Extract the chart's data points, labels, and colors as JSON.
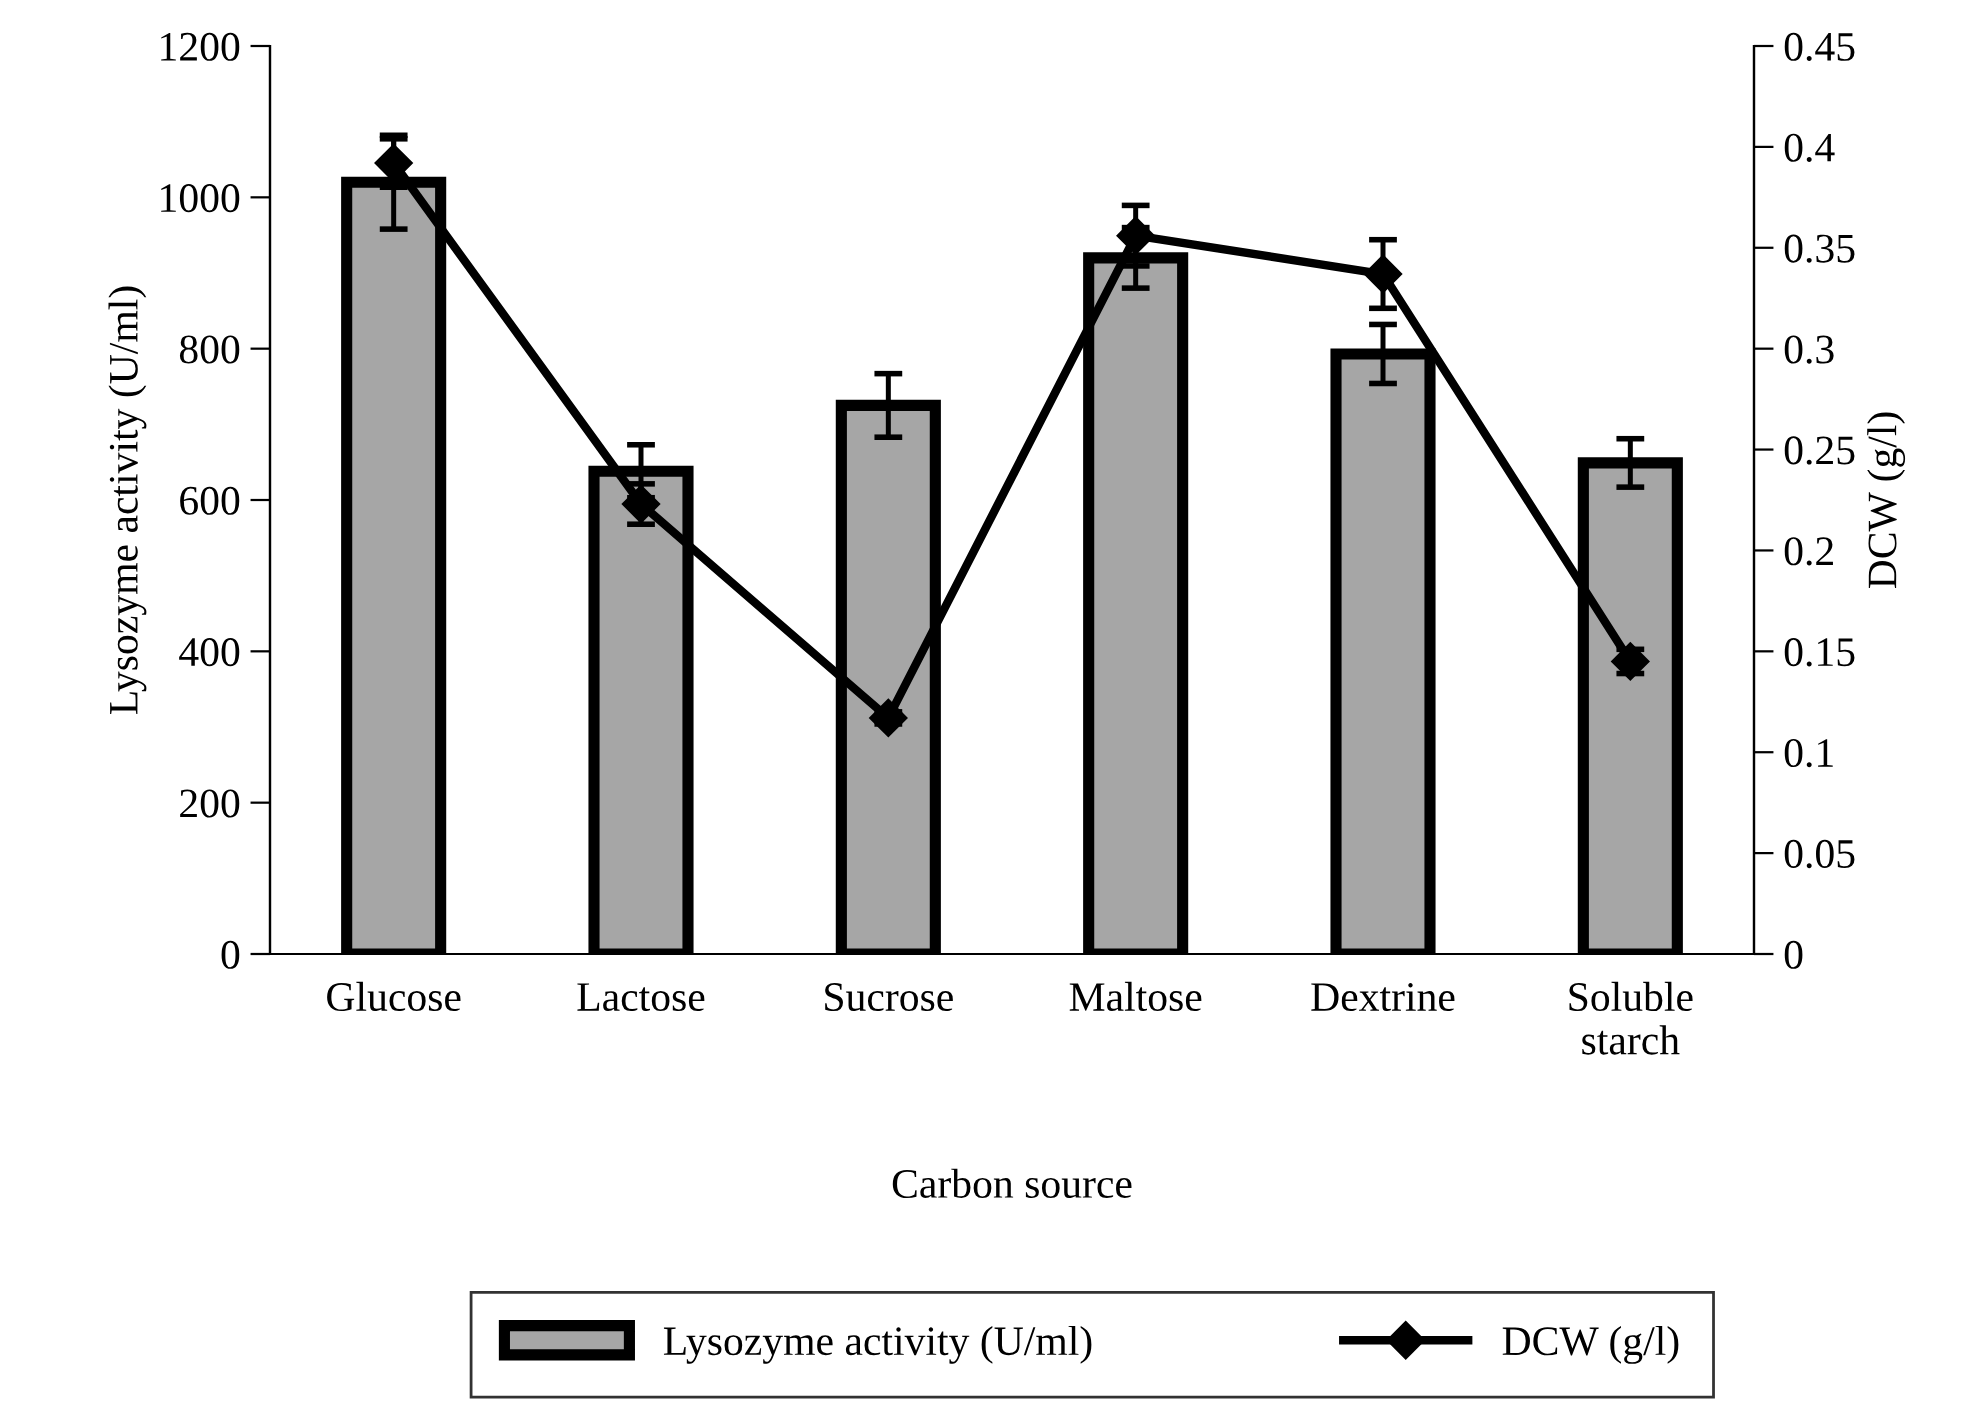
{
  "chart_data": {
    "type": "bar",
    "xlabel": "Carbon source",
    "ylabel": "Lysozyme activity (U/ml)",
    "y2label": "DCW (g/l)",
    "categories": [
      "Glucose",
      "Lactose",
      "Sucrose",
      "Maltose",
      "Dextrine",
      "Soluble\nstarch"
    ],
    "series": [
      {
        "name": "Lysozyme activity (U/ml)",
        "color": "#a6a6a6",
        "values": [
          1020,
          638,
          725,
          920,
          793,
          649
        ],
        "errors": [
          62,
          35,
          42,
          40,
          39,
          32
        ]
      },
      {
        "name": "DCW (g/l)",
        "type": "line",
        "axis": "y2",
        "color": "#000000",
        "marker": "diamond",
        "values": [
          0.392,
          0.223,
          0.117,
          0.356,
          0.337,
          0.145
        ],
        "errors": [
          0.012,
          0.01,
          0.003,
          0.015,
          0.017,
          0.006
        ]
      }
    ],
    "ylim": [
      0,
      1200
    ],
    "yticks": [
      0,
      200,
      400,
      600,
      800,
      1000,
      1200
    ],
    "y2lim": [
      0,
      0.45
    ],
    "y2ticks": [
      0,
      0.05,
      0.1,
      0.15,
      0.2,
      0.25,
      0.3,
      0.35,
      0.4,
      0.45
    ],
    "grid": false,
    "legend": "bottom"
  }
}
